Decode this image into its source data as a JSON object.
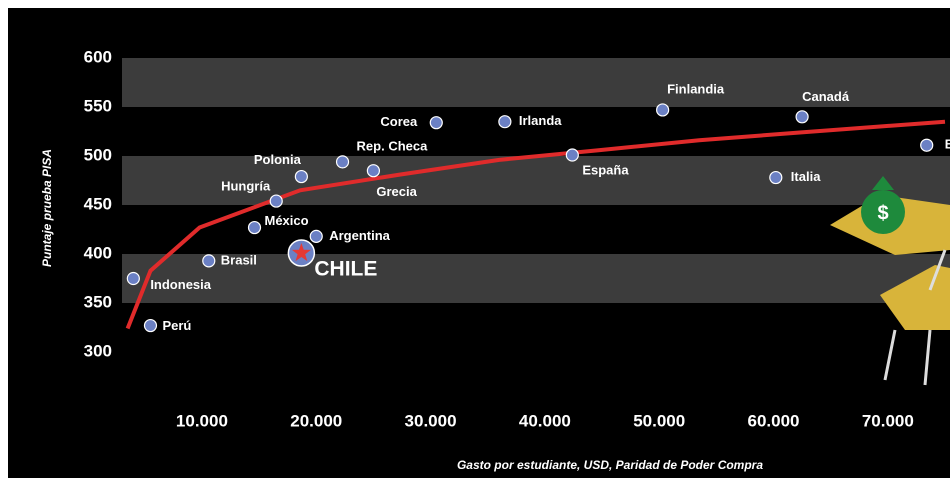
{
  "chart_data": {
    "type": "scatter",
    "x_label": "Gasto por estudiante, USD, Paridad de Poder Compra",
    "y_label": "Puntaje prueba PISA",
    "labels": [
      "Indonesia",
      "Perú",
      "Brasil",
      "México",
      "Argentina",
      "CHILE",
      "Hungría",
      "Polonia",
      "Rep. Checa",
      "Grecia",
      "Corea",
      "Irlanda",
      "España",
      "Finlandia",
      "Italia",
      "Canadá",
      "B"
    ],
    "x": [
      4000,
      5500,
      10600,
      14600,
      20000,
      18700,
      16500,
      18700,
      22300,
      25000,
      30500,
      36500,
      42400,
      50300,
      60200,
      62500,
      73400
    ],
    "y": [
      375,
      327,
      393,
      427,
      418,
      401,
      454,
      479,
      494,
      485,
      534,
      535,
      501,
      547,
      478,
      540,
      511
    ],
    "color": "#6b80c4",
    "highlight_color": "#e53935",
    "trend": {
      "color": "#e02b2b",
      "x": [
        3500,
        5500,
        9800,
        18600,
        27300,
        36000,
        44800,
        53500,
        62300,
        75000
      ],
      "y": [
        324,
        383,
        427,
        465,
        481,
        496,
        506,
        516,
        524,
        535
      ]
    },
    "xlim": [
      0,
      75000
    ],
    "xticks": [
      {
        "value": 10000,
        "label": "10.000"
      },
      {
        "value": 20000,
        "label": "20.000"
      },
      {
        "value": 30000,
        "label": "30.000"
      },
      {
        "value": 40000,
        "label": "40.000"
      },
      {
        "value": 50000,
        "label": "50.000"
      },
      {
        "value": 60000,
        "label": "60.000"
      },
      {
        "value": 70000,
        "label": "70.000"
      }
    ],
    "ylim": [
      300,
      600
    ],
    "yticks": [
      300,
      350,
      400,
      450,
      500,
      550,
      600
    ],
    "band_color": "#3c3c3c"
  }
}
